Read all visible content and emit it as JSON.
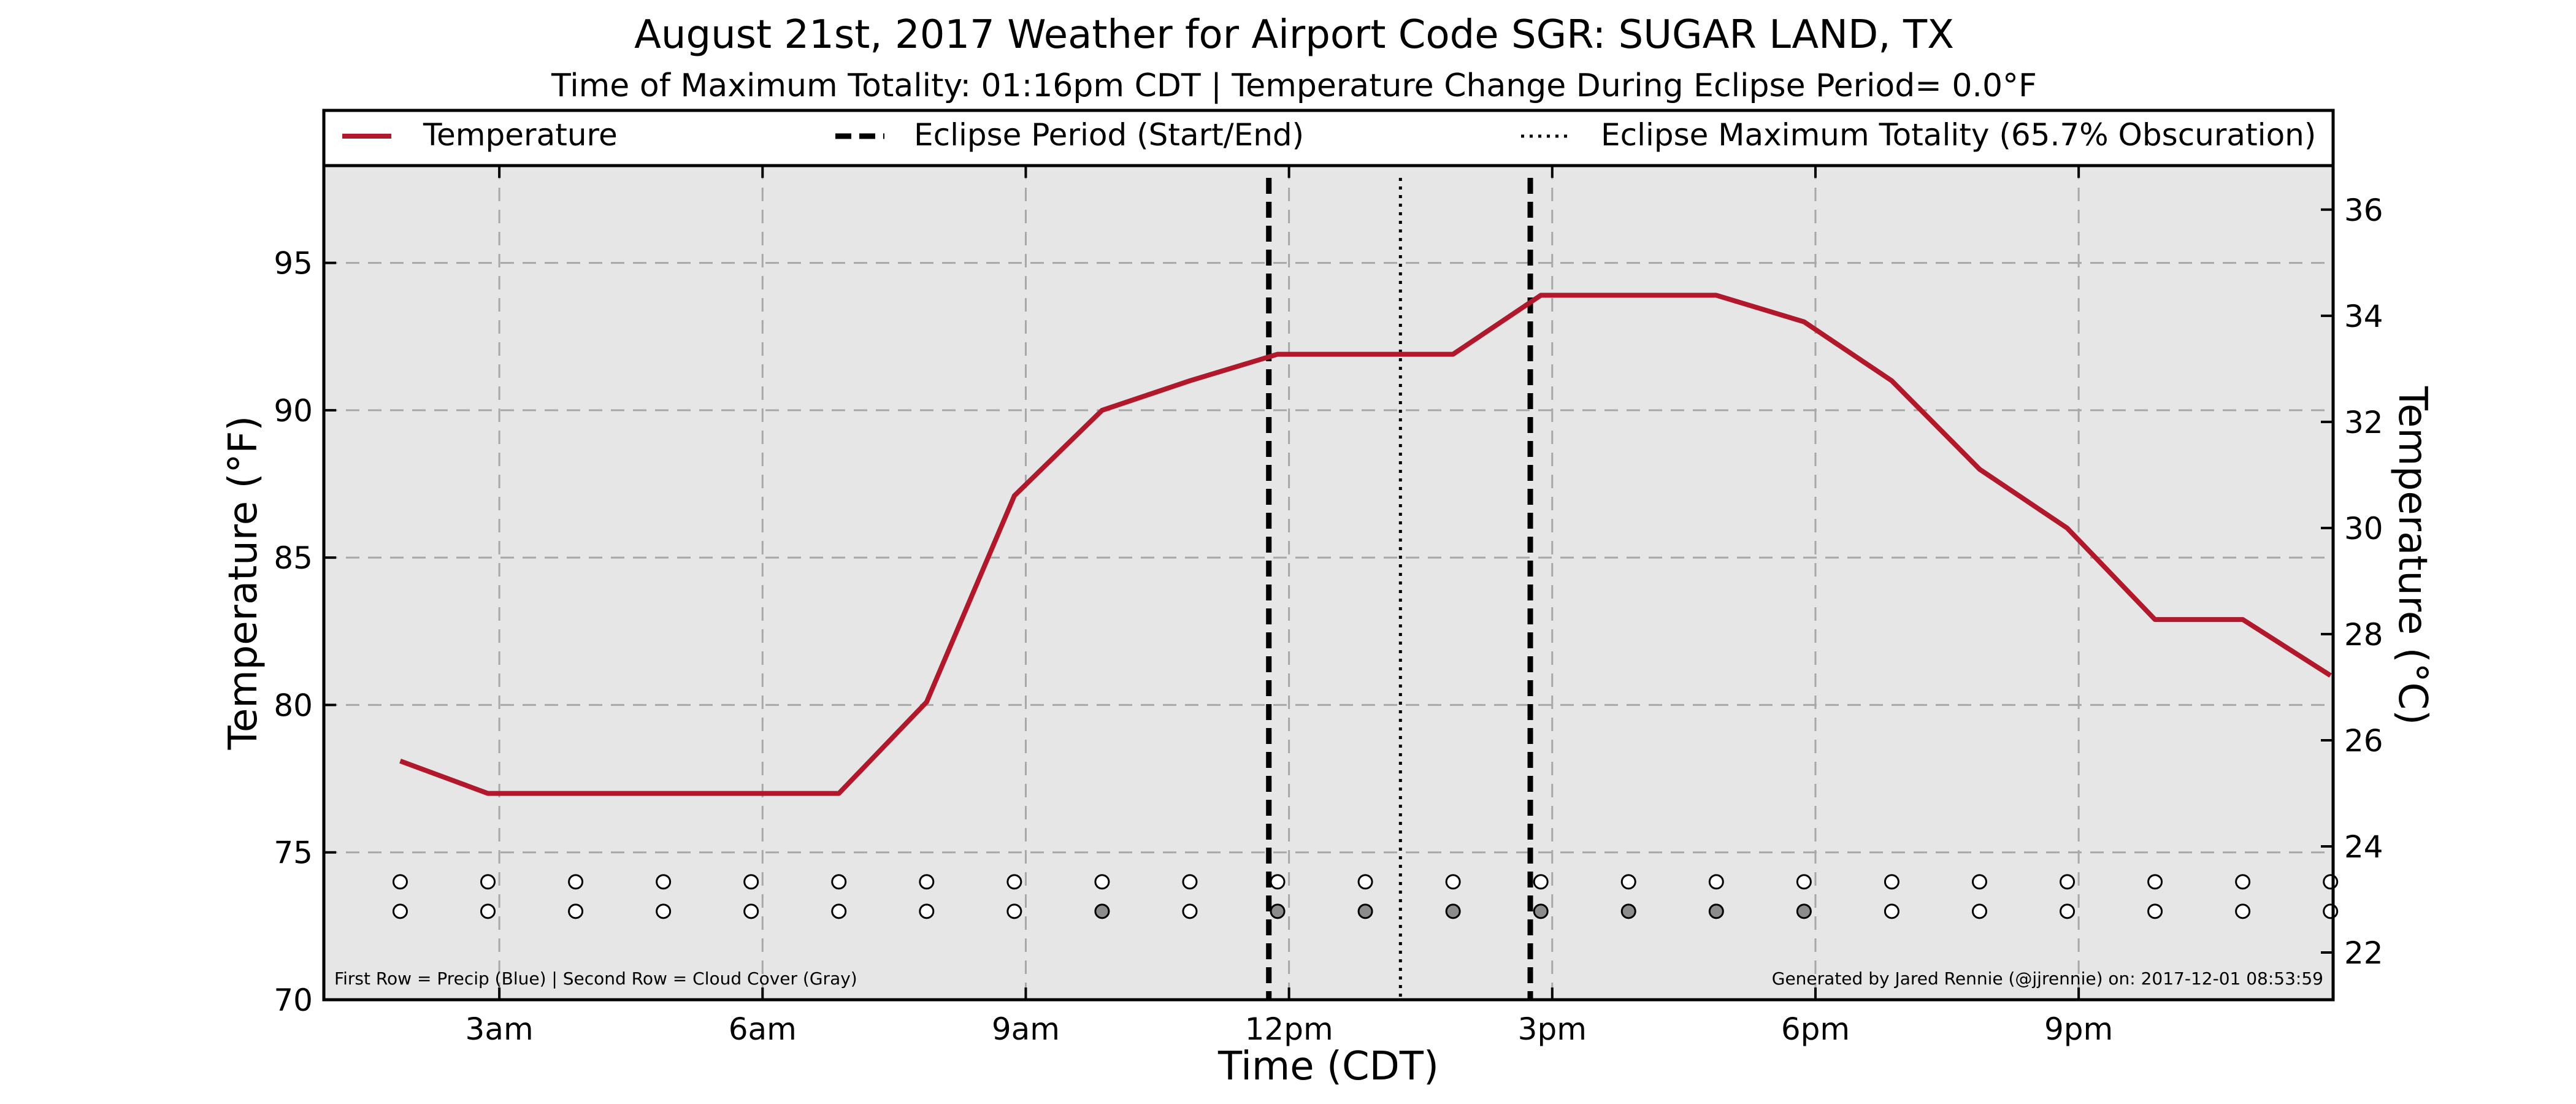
{
  "chart_data": {
    "type": "line",
    "title": "August 21st, 2017 Weather for Airport Code SGR: SUGAR LAND, TX",
    "subtitle": "Time of Maximum Totality: 01:16pm CDT | Temperature Change During Eclipse Period= 0.0°F",
    "xlabel": "Time (CDT)",
    "ylabel": "Temperature (°F)",
    "y2label": "Temperature (°C)",
    "xlim": [
      1,
      23.9
    ],
    "ylim": [
      70,
      98.3
    ],
    "y2lim": [
      21.11,
      36.83
    ],
    "x_ticks": [
      {
        "x": 3,
        "label": "3am"
      },
      {
        "x": 6,
        "label": "6am"
      },
      {
        "x": 9,
        "label": "9am"
      },
      {
        "x": 12,
        "label": "12pm"
      },
      {
        "x": 15,
        "label": "3pm"
      },
      {
        "x": 18,
        "label": "6pm"
      },
      {
        "x": 21,
        "label": "9pm"
      }
    ],
    "y_ticks": [
      70,
      75,
      80,
      85,
      90,
      95
    ],
    "y2_ticks": [
      22,
      24,
      26,
      28,
      30,
      32,
      34,
      36
    ],
    "grid": true,
    "legend_position": "top",
    "series": [
      {
        "name": "Temperature",
        "color": "#b2182b",
        "x": [
          1.87,
          2.87,
          3.87,
          4.87,
          5.87,
          6.87,
          7.87,
          8.87,
          9.87,
          10.87,
          11.87,
          12.87,
          13.87,
          14.87,
          15.87,
          16.87,
          17.87,
          18.87,
          19.87,
          20.87,
          21.87,
          22.87,
          23.87
        ],
        "values": [
          78.1,
          77.0,
          77.0,
          77.0,
          77.0,
          77.0,
          80.1,
          87.1,
          90.0,
          91.0,
          91.9,
          91.9,
          91.9,
          93.9,
          93.9,
          93.9,
          93.0,
          91.0,
          88.0,
          86.0,
          82.9,
          82.9,
          81.0
        ]
      }
    ],
    "eclipse_period": {
      "label": "Eclipse Period (Start/End)",
      "start": 11.77,
      "end": 14.75
    },
    "eclipse_max": {
      "label": "Eclipse Maximum Totality (65.7% Obscuration)",
      "x": 13.27
    },
    "markers": {
      "precip_y": 74.0,
      "cloud_y": 73.0,
      "x": [
        1.87,
        2.87,
        3.87,
        4.87,
        5.87,
        6.87,
        7.87,
        8.87,
        9.87,
        10.87,
        11.87,
        12.87,
        13.87,
        14.87,
        15.87,
        16.87,
        17.87,
        18.87,
        19.87,
        20.87,
        21.87,
        22.87,
        23.87
      ],
      "precip": [
        0,
        0,
        0,
        0,
        0,
        0,
        0,
        0,
        0,
        0,
        0,
        0,
        0,
        0,
        0,
        0,
        0,
        0,
        0,
        0,
        0,
        0,
        0
      ],
      "cloud": [
        0,
        0,
        0,
        0,
        0,
        0,
        0,
        0,
        1,
        0,
        1,
        1,
        1,
        1,
        1,
        1,
        1,
        0,
        0,
        0,
        0,
        0,
        0
      ]
    },
    "footnote_left": "First Row = Precip (Blue) | Second Row = Cloud Cover (Gray)",
    "footnote_right": "Generated by Jared Rennie (@jjrennie) on: 2017-12-01 08:53:59"
  },
  "colors": {
    "plot_background": "#e6e6e6",
    "grid": "#a8a8a8",
    "temperature_line": "#b2182b",
    "cloud_marker_fill": "#8c8c8c",
    "empty_marker_fill": "#ffffff",
    "eclipse_lines": "#000000"
  }
}
